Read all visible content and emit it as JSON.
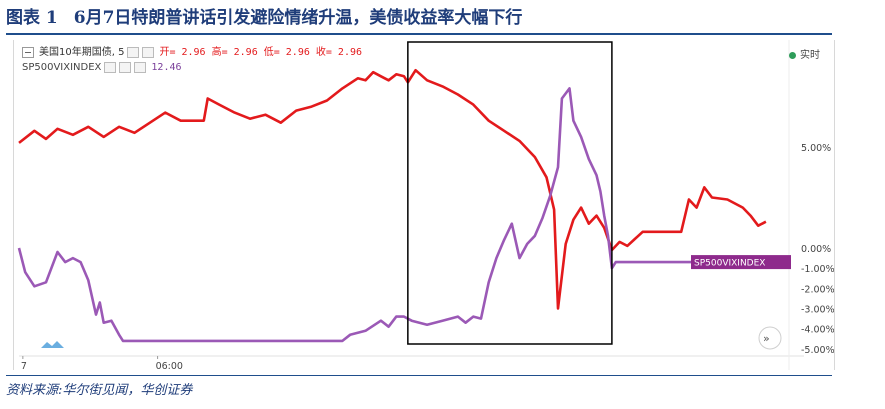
{
  "figure_title": {
    "number": "图表 1",
    "text": "6月7日特朗普讲话引发避险情绪升温，美债收益率大幅下行"
  },
  "legend": {
    "row1": {
      "name": "美国10年期国债, 5",
      "stat": "开= 2.96 高= 2.96 低= 2.96 收= 2.96"
    },
    "row2": {
      "name": "SP500VIXINDEX",
      "stat": "12.46"
    },
    "live": "实时"
  },
  "colors": {
    "treasury": "#e31a1c",
    "vix": "#9b59b6",
    "highlight_box": "#000000",
    "title": "#1f3d7a"
  },
  "icons": [
    "collapse-icon",
    "settings-icon",
    "cloud-logo-icon",
    "forward-icon"
  ],
  "chart_data": {
    "type": "line",
    "x_ticks": [
      "7",
      "06:00"
    ],
    "y_ticks": [
      {
        "label": "5.00%",
        "value": 5
      },
      {
        "label": "0.00%",
        "value": 0
      },
      {
        "label": "-1.00%",
        "value": -1
      },
      {
        "label": "-2.00%",
        "value": -2
      },
      {
        "label": "-3.00%",
        "value": -3
      },
      {
        "label": "-4.00%",
        "value": -4
      },
      {
        "label": "-5.00%",
        "value": -5
      }
    ],
    "ylim": [
      -5.3,
      9.9
    ],
    "xlim": [
      0,
      1
    ],
    "end_label": "SP500VIXINDEX",
    "highlight_x_range": [
      0.505,
      0.77
    ],
    "series": [
      {
        "name": "美国10年期国债, 5",
        "color": "#e31a1c",
        "points": [
          [
            0,
            5.2
          ],
          [
            0.02,
            5.8
          ],
          [
            0.035,
            5.4
          ],
          [
            0.05,
            5.9
          ],
          [
            0.07,
            5.6
          ],
          [
            0.09,
            6.0
          ],
          [
            0.11,
            5.5
          ],
          [
            0.13,
            6.0
          ],
          [
            0.15,
            5.7
          ],
          [
            0.17,
            6.2
          ],
          [
            0.19,
            6.7
          ],
          [
            0.21,
            6.3
          ],
          [
            0.22,
            6.3
          ],
          [
            0.24,
            6.3
          ],
          [
            0.245,
            7.4
          ],
          [
            0.26,
            7.1
          ],
          [
            0.28,
            6.7
          ],
          [
            0.3,
            6.4
          ],
          [
            0.32,
            6.6
          ],
          [
            0.34,
            6.2
          ],
          [
            0.36,
            6.8
          ],
          [
            0.38,
            7.0
          ],
          [
            0.4,
            7.3
          ],
          [
            0.42,
            7.9
          ],
          [
            0.44,
            8.4
          ],
          [
            0.45,
            8.3
          ],
          [
            0.46,
            8.7
          ],
          [
            0.47,
            8.5
          ],
          [
            0.48,
            8.3
          ],
          [
            0.49,
            8.6
          ],
          [
            0.5,
            8.5
          ],
          [
            0.505,
            8.2
          ],
          [
            0.515,
            8.8
          ],
          [
            0.53,
            8.3
          ],
          [
            0.55,
            8.0
          ],
          [
            0.57,
            7.6
          ],
          [
            0.59,
            7.1
          ],
          [
            0.61,
            6.3
          ],
          [
            0.63,
            5.8
          ],
          [
            0.65,
            5.3
          ],
          [
            0.67,
            4.5
          ],
          [
            0.685,
            3.5
          ],
          [
            0.695,
            1.9
          ],
          [
            0.7,
            -3.0
          ],
          [
            0.71,
            0.2
          ],
          [
            0.72,
            1.4
          ],
          [
            0.73,
            2.0
          ],
          [
            0.74,
            1.2
          ],
          [
            0.75,
            1.6
          ],
          [
            0.76,
            1.0
          ],
          [
            0.77,
            -0.1
          ],
          [
            0.78,
            0.3
          ],
          [
            0.79,
            0.1
          ],
          [
            0.81,
            0.8
          ],
          [
            0.86,
            0.8
          ],
          [
            0.87,
            2.4
          ],
          [
            0.88,
            2.0
          ],
          [
            0.89,
            3.0
          ],
          [
            0.9,
            2.5
          ],
          [
            0.92,
            2.4
          ],
          [
            0.94,
            2.0
          ],
          [
            0.95,
            1.6
          ],
          [
            0.96,
            1.1
          ],
          [
            0.97,
            1.3
          ]
        ]
      },
      {
        "name": "SP500VIXINDEX",
        "color": "#9b59b6",
        "points": [
          [
            0,
            0.0
          ],
          [
            0.008,
            -1.2
          ],
          [
            0.02,
            -1.9
          ],
          [
            0.035,
            -1.7
          ],
          [
            0.05,
            -0.2
          ],
          [
            0.06,
            -0.7
          ],
          [
            0.07,
            -0.5
          ],
          [
            0.08,
            -0.7
          ],
          [
            0.09,
            -1.6
          ],
          [
            0.1,
            -3.3
          ],
          [
            0.105,
            -2.7
          ],
          [
            0.11,
            -3.7
          ],
          [
            0.12,
            -3.6
          ],
          [
            0.13,
            -4.3
          ],
          [
            0.135,
            -4.6
          ],
          [
            0.2,
            -4.6
          ],
          [
            0.3,
            -4.6
          ],
          [
            0.42,
            -4.6
          ],
          [
            0.43,
            -4.3
          ],
          [
            0.45,
            -4.1
          ],
          [
            0.47,
            -3.6
          ],
          [
            0.48,
            -3.9
          ],
          [
            0.49,
            -3.4
          ],
          [
            0.5,
            -3.4
          ],
          [
            0.51,
            -3.6
          ],
          [
            0.53,
            -3.8
          ],
          [
            0.55,
            -3.6
          ],
          [
            0.57,
            -3.4
          ],
          [
            0.58,
            -3.7
          ],
          [
            0.59,
            -3.4
          ],
          [
            0.6,
            -3.5
          ],
          [
            0.61,
            -1.7
          ],
          [
            0.62,
            -0.5
          ],
          [
            0.63,
            0.4
          ],
          [
            0.64,
            1.2
          ],
          [
            0.65,
            -0.5
          ],
          [
            0.66,
            0.2
          ],
          [
            0.67,
            0.6
          ],
          [
            0.68,
            1.5
          ],
          [
            0.69,
            2.6
          ],
          [
            0.7,
            4.0
          ],
          [
            0.705,
            7.4
          ],
          [
            0.715,
            7.9
          ],
          [
            0.72,
            6.3
          ],
          [
            0.73,
            5.5
          ],
          [
            0.74,
            4.4
          ],
          [
            0.75,
            3.6
          ],
          [
            0.755,
            2.8
          ],
          [
            0.76,
            1.6
          ],
          [
            0.765,
            0.6
          ],
          [
            0.77,
            -1.0
          ],
          [
            0.775,
            -0.7
          ],
          [
            0.78,
            -0.7
          ],
          [
            0.85,
            -0.7
          ],
          [
            0.92,
            -0.7
          ]
        ]
      }
    ]
  },
  "source": "资料来源:华尔街见闻，华创证券"
}
